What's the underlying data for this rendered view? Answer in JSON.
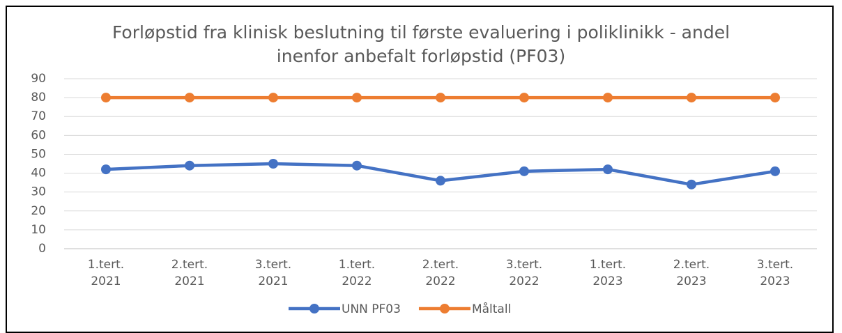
{
  "chart_data": {
    "type": "line",
    "title": "Forløpstid fra klinisk beslutning til første evaluering i poliklinikk - andel inenfor anbefalt forløpstid (PF03)",
    "categories": [
      "1.tert. 2021",
      "2.tert. 2021",
      "3.tert. 2021",
      "1.tert. 2022",
      "2.tert. 2022",
      "3.tert. 2022",
      "1.tert. 2023",
      "2.tert. 2023",
      "3.tert. 2023"
    ],
    "series": [
      {
        "name": "UNN PF03",
        "color": "#4472c4",
        "values": [
          42,
          44,
          45,
          44,
          36,
          41,
          42,
          34,
          41
        ]
      },
      {
        "name": "Måltall",
        "color": "#ed7d31",
        "values": [
          80,
          80,
          80,
          80,
          80,
          80,
          80,
          80,
          80
        ]
      }
    ],
    "ylim": [
      0,
      90
    ],
    "yticks": [
      0,
      10,
      20,
      30,
      40,
      50,
      60,
      70,
      80,
      90
    ],
    "grid": true,
    "legend": "bottom"
  }
}
